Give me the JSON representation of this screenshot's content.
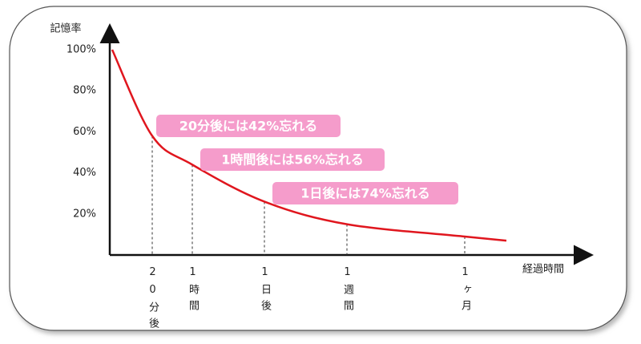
{
  "chart_data": {
    "type": "line",
    "y_label": "記憶率",
    "x_label": "経過時間",
    "categories": [
      null,
      "20分後",
      "1時間",
      "1日後",
      "1週間",
      "1ヶ月",
      null
    ],
    "series": [
      {
        "name": "記憶率",
        "color": "#e0161e",
        "values": [
          100,
          58,
          44,
          26,
          15,
          9,
          7
        ]
      }
    ],
    "ylim": [
      0,
      100
    ],
    "yticks": [
      {
        "value": 20,
        "label": "20%"
      },
      {
        "value": 40,
        "label": "40%"
      },
      {
        "value": 60,
        "label": "60%"
      },
      {
        "value": 80,
        "label": "80%"
      },
      {
        "value": 100,
        "label": "100%"
      }
    ],
    "annotations": [
      "20分後には42%忘れる",
      "1時間後には56%忘れる",
      "1日後には74%忘れる"
    ],
    "annotation_color": "#f59ccb"
  }
}
